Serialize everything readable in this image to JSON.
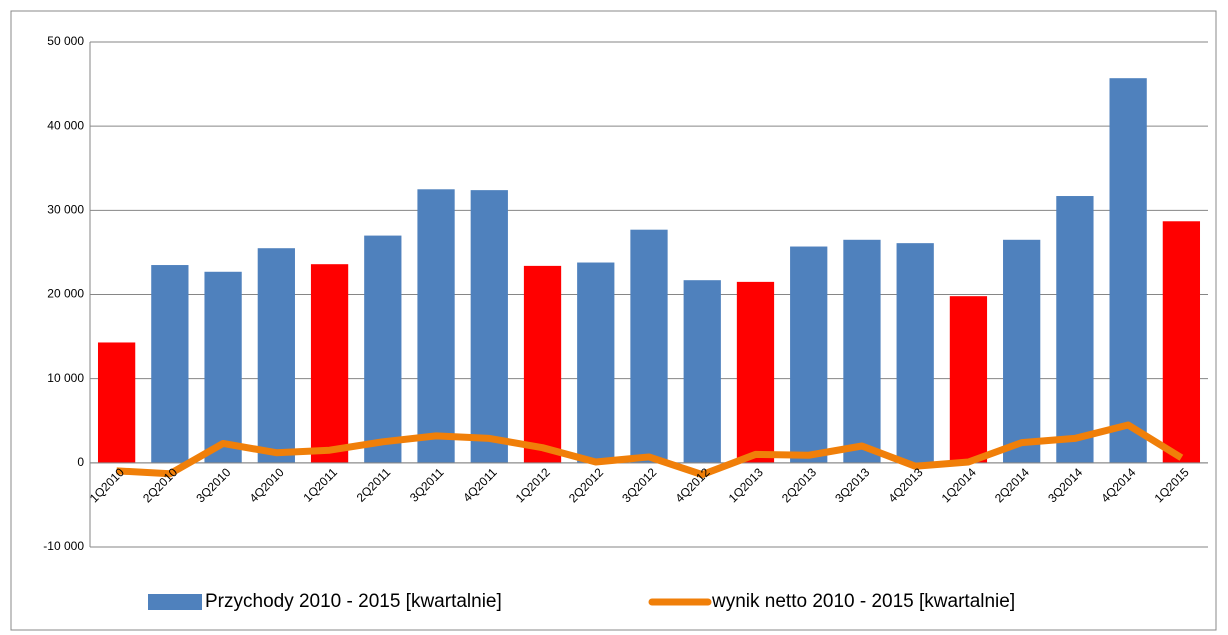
{
  "chart_data": {
    "type": "bar_line",
    "categories": [
      "1Q2010",
      "2Q2010",
      "3Q2010",
      "4Q2010",
      "1Q2011",
      "2Q2011",
      "3Q2011",
      "4Q2011",
      "1Q2012",
      "2Q2012",
      "3Q2012",
      "4Q2012",
      "1Q2013",
      "2Q2013",
      "3Q2013",
      "4Q2013",
      "1Q2014",
      "2Q2014",
      "3Q2014",
      "4Q2014",
      "1Q2015"
    ],
    "series": [
      {
        "name": "Przychody 2010 - 2015 [kwartalnie]",
        "type": "bar",
        "color": "#4f81bd",
        "colors": [
          "#ff0000",
          "#4f81bd",
          "#4f81bd",
          "#4f81bd",
          "#ff0000",
          "#4f81bd",
          "#4f81bd",
          "#4f81bd",
          "#ff0000",
          "#4f81bd",
          "#4f81bd",
          "#4f81bd",
          "#ff0000",
          "#4f81bd",
          "#4f81bd",
          "#4f81bd",
          "#ff0000",
          "#4f81bd",
          "#4f81bd",
          "#4f81bd",
          "#ff0000"
        ],
        "values": [
          14300,
          23500,
          22700,
          25500,
          23600,
          27000,
          32500,
          32400,
          23400,
          23800,
          27700,
          21700,
          21500,
          25700,
          26500,
          26100,
          19800,
          26500,
          31700,
          45700,
          28700
        ]
      },
      {
        "name": "wynik netto 2010 - 2015 [kwartalnie]",
        "type": "line",
        "color": "#f07f09",
        "values": [
          -950,
          -1300,
          2300,
          1200,
          1500,
          2500,
          3200,
          2900,
          1800,
          100,
          700,
          -1400,
          1000,
          900,
          2000,
          -400,
          100,
          2400,
          2900,
          4500,
          600
        ]
      }
    ],
    "ylim": [
      -10000,
      50000
    ],
    "yticks": [
      {
        "value": -10000,
        "label": "-10 000"
      },
      0,
      {
        "value": 10000,
        "label": "10 000"
      },
      {
        "value": 20000,
        "label": "20 000"
      },
      {
        "value": 30000,
        "label": "30 000"
      },
      {
        "value": 40000,
        "label": "40 000"
      },
      {
        "value": 50000,
        "label": "50 000"
      }
    ],
    "grid": true,
    "legend": "bottom"
  }
}
